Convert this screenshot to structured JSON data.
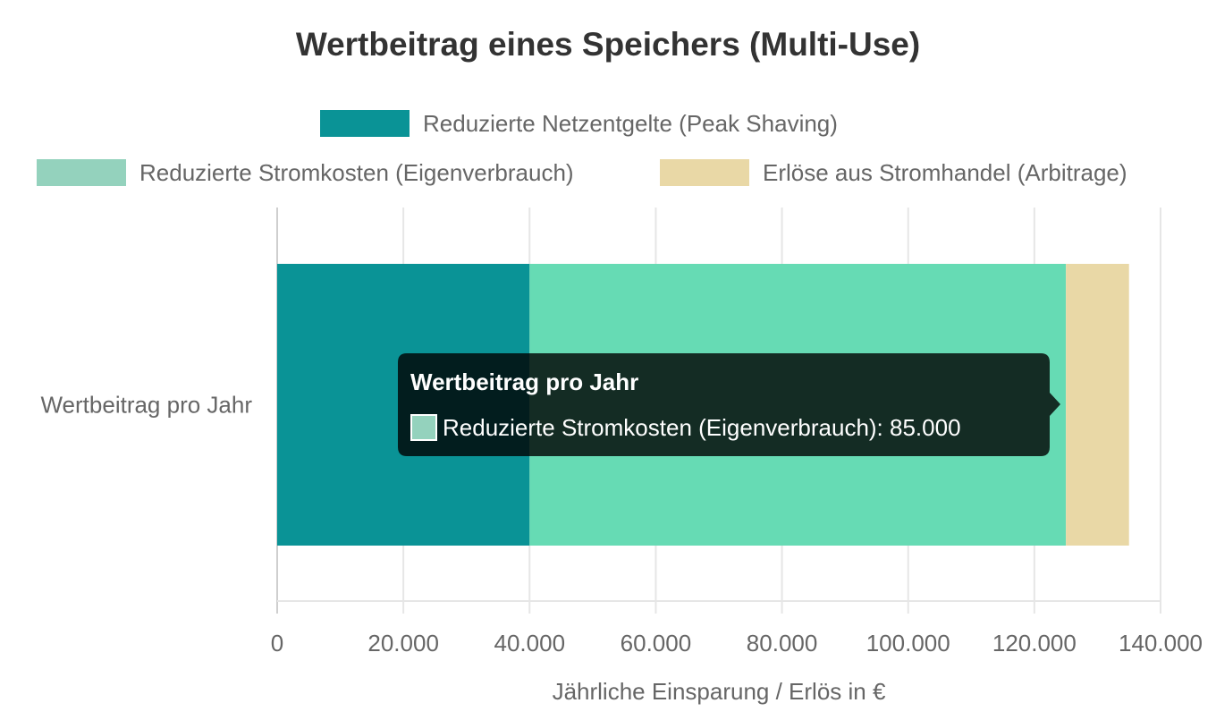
{
  "chart_data": {
    "type": "bar",
    "orientation": "horizontal",
    "stacked": true,
    "title": "Wertbeitrag eines Speichers (Multi-Use)",
    "categories": [
      "Wertbeitrag pro Jahr"
    ],
    "series": [
      {
        "name": "Reduzierte Netzentgelte (Peak Shaving)",
        "values": [
          40000
        ],
        "color": "#0a9396",
        "legend_color": "#0a9396"
      },
      {
        "name": "Reduzierte Stromkosten (Eigenverbrauch)",
        "values": [
          85000
        ],
        "color": "#66dbb4",
        "legend_color": "#94d2bd"
      },
      {
        "name": "Erlöse aus Stromhandel (Arbitrage)",
        "values": [
          10000
        ],
        "color": "#e9d8a6",
        "legend_color": "#e9d8a6"
      }
    ],
    "xlabel": "Jährliche Einsparung / Erlös in €",
    "ylabel": "",
    "xlim": [
      0,
      140000
    ],
    "x_ticks": [
      0,
      20000,
      40000,
      60000,
      80000,
      100000,
      120000,
      140000
    ],
    "x_tick_labels": [
      "0",
      "20.000",
      "40.000",
      "60.000",
      "80.000",
      "100.000",
      "120.000",
      "140.000"
    ],
    "grid": true,
    "legend_position": "top",
    "tooltip": {
      "title": "Wertbeitrag pro Jahr",
      "text": "Reduzierte Stromkosten (Eigenverbrauch): 85.000",
      "swatch_color": "#94d2bd"
    }
  }
}
